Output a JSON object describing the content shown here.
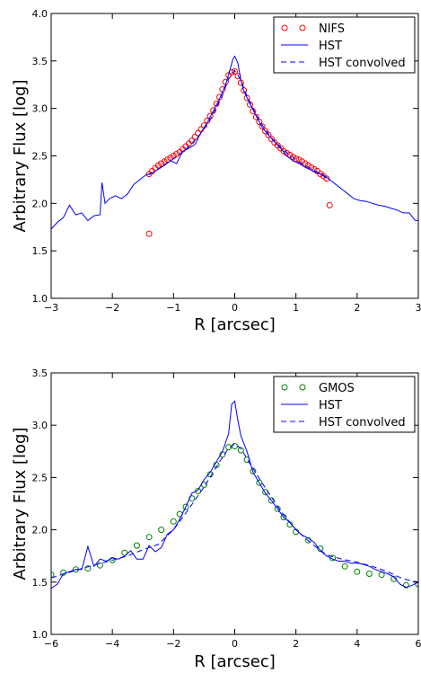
{
  "chart_data": [
    {
      "type": "line",
      "xlabel": "R [arcsec]",
      "ylabel": "Arbitrary Flux [log]",
      "xlim": [
        -3,
        3
      ],
      "ylim": [
        1.0,
        4.0
      ],
      "xticks": [
        -3,
        -2,
        -1,
        0,
        1,
        2,
        3
      ],
      "xtick_labels": [
        "−3",
        "−2",
        "−1",
        "0",
        "1",
        "2",
        "3"
      ],
      "yticks": [
        1.0,
        1.5,
        2.0,
        2.5,
        3.0,
        3.5,
        4.0
      ],
      "ytick_labels": [
        "1.0",
        "1.5",
        "2.0",
        "2.5",
        "3.0",
        "3.5",
        "4.0"
      ],
      "grid": false,
      "legend_position": "top-right",
      "series": [
        {
          "name": "NIFS",
          "style": "circles",
          "color": "#ff0000",
          "x": [
            -1.4,
            -1.35,
            -1.3,
            -1.25,
            -1.2,
            -1.15,
            -1.1,
            -1.05,
            -1.0,
            -0.95,
            -0.9,
            -0.85,
            -0.8,
            -0.75,
            -0.7,
            -0.65,
            -0.6,
            -0.55,
            -0.5,
            -0.45,
            -0.4,
            -0.35,
            -0.3,
            -0.25,
            -0.2,
            -0.15,
            -0.1,
            -0.05,
            0.0,
            0.05,
            0.1,
            0.15,
            0.2,
            0.25,
            0.3,
            0.35,
            0.4,
            0.45,
            0.5,
            0.55,
            0.6,
            0.65,
            0.7,
            0.75,
            0.8,
            0.85,
            0.9,
            0.95,
            1.0,
            1.05,
            1.1,
            1.15,
            1.2,
            1.25,
            1.3,
            1.35,
            1.4,
            1.45,
            1.5,
            -1.4,
            1.55
          ],
          "y": [
            2.31,
            2.34,
            2.37,
            2.4,
            2.42,
            2.44,
            2.46,
            2.48,
            2.5,
            2.52,
            2.54,
            2.57,
            2.6,
            2.63,
            2.66,
            2.7,
            2.74,
            2.78,
            2.82,
            2.87,
            2.92,
            2.98,
            3.05,
            3.12,
            3.2,
            3.28,
            3.35,
            3.38,
            3.39,
            3.34,
            3.27,
            3.19,
            3.11,
            3.04,
            2.97,
            2.91,
            2.86,
            2.81,
            2.76,
            2.72,
            2.68,
            2.64,
            2.61,
            2.58,
            2.55,
            2.53,
            2.51,
            2.49,
            2.47,
            2.46,
            2.44,
            2.42,
            2.4,
            2.38,
            2.36,
            2.34,
            2.31,
            2.29,
            2.26,
            1.68,
            1.98
          ]
        },
        {
          "name": "HST",
          "style": "solid",
          "color": "#0000ff",
          "x": [
            -3.0,
            -2.9,
            -2.8,
            -2.7,
            -2.6,
            -2.5,
            -2.4,
            -2.3,
            -2.2,
            -2.17,
            -2.12,
            -2.05,
            -1.95,
            -1.85,
            -1.75,
            -1.65,
            -1.55,
            -1.45,
            -1.35,
            -1.25,
            -1.15,
            -1.05,
            -0.95,
            -0.85,
            -0.75,
            -0.65,
            -0.55,
            -0.45,
            -0.35,
            -0.25,
            -0.15,
            -0.08,
            -0.03,
            0.0,
            0.05,
            0.1,
            0.15,
            0.25,
            0.35,
            0.45,
            0.55,
            0.65,
            0.75,
            0.85,
            0.95,
            1.05,
            1.15,
            1.25,
            1.35,
            1.45,
            1.55,
            1.65,
            1.75,
            1.85,
            1.95,
            2.05,
            2.15,
            2.25,
            2.35,
            2.45,
            2.55,
            2.65,
            2.75,
            2.85,
            2.95,
            3.0
          ],
          "y": [
            1.73,
            1.8,
            1.85,
            1.98,
            1.88,
            1.9,
            1.82,
            1.87,
            1.88,
            2.22,
            2.0,
            2.05,
            2.08,
            2.05,
            2.1,
            2.2,
            2.25,
            2.3,
            2.32,
            2.36,
            2.4,
            2.45,
            2.42,
            2.55,
            2.58,
            2.62,
            2.75,
            2.85,
            2.97,
            3.1,
            3.25,
            3.4,
            3.52,
            3.55,
            3.48,
            3.3,
            3.18,
            3.05,
            2.92,
            2.8,
            2.72,
            2.65,
            2.58,
            2.5,
            2.45,
            2.42,
            2.38,
            2.35,
            2.32,
            2.3,
            2.25,
            2.2,
            2.15,
            2.1,
            2.05,
            2.03,
            2.02,
            2.0,
            1.98,
            1.97,
            1.95,
            1.93,
            1.9,
            1.9,
            1.82,
            1.82
          ]
        },
        {
          "name": "HST convolved",
          "style": "dashed",
          "color": "#0000ff",
          "x": [
            -1.4,
            -1.2,
            -1.0,
            -0.8,
            -0.6,
            -0.4,
            -0.2,
            -0.1,
            0.0,
            0.1,
            0.2,
            0.4,
            0.6,
            0.8,
            1.0,
            1.2,
            1.4,
            1.5
          ],
          "y": [
            2.3,
            2.38,
            2.47,
            2.57,
            2.7,
            2.88,
            3.14,
            3.31,
            3.4,
            3.3,
            3.13,
            2.87,
            2.69,
            2.56,
            2.46,
            2.38,
            2.31,
            2.27
          ]
        }
      ]
    },
    {
      "type": "line",
      "xlabel": "R [arcsec]",
      "ylabel": "Arbitrary Flux [log]",
      "xlim": [
        -6,
        6
      ],
      "ylim": [
        1.0,
        3.5
      ],
      "xticks": [
        -6,
        -4,
        -2,
        0,
        2,
        4,
        6
      ],
      "xtick_labels": [
        "−6",
        "−4",
        "−2",
        "0",
        "2",
        "4",
        "6"
      ],
      "yticks": [
        1.0,
        1.5,
        2.0,
        2.5,
        3.0,
        3.5
      ],
      "ytick_labels": [
        "1.0",
        "1.5",
        "2.0",
        "2.5",
        "3.0",
        "3.5"
      ],
      "grid": false,
      "legend_position": "top-right",
      "series": [
        {
          "name": "GMOS",
          "style": "circles",
          "color": "#008000",
          "x": [
            -6.0,
            -5.6,
            -5.2,
            -4.8,
            -4.4,
            -4.0,
            -3.6,
            -3.2,
            -2.8,
            -2.4,
            -2.0,
            -1.8,
            -1.6,
            -1.4,
            -1.2,
            -1.0,
            -0.8,
            -0.6,
            -0.4,
            -0.2,
            0.0,
            0.2,
            0.4,
            0.6,
            0.8,
            1.0,
            1.2,
            1.4,
            1.6,
            1.8,
            2.0,
            2.4,
            2.8,
            3.2,
            3.6,
            4.0,
            4.4,
            4.8,
            5.2,
            5.6,
            6.0
          ],
          "y": [
            1.57,
            1.59,
            1.62,
            1.63,
            1.66,
            1.71,
            1.78,
            1.85,
            1.93,
            2.0,
            2.08,
            2.15,
            2.22,
            2.3,
            2.37,
            2.43,
            2.53,
            2.62,
            2.72,
            2.79,
            2.8,
            2.76,
            2.67,
            2.56,
            2.45,
            2.36,
            2.28,
            2.2,
            2.12,
            2.05,
            1.98,
            1.9,
            1.82,
            1.73,
            1.65,
            1.6,
            1.58,
            1.57,
            1.53,
            1.47,
            1.48
          ]
        },
        {
          "name": "HST",
          "style": "solid",
          "color": "#0000ff",
          "x": [
            -6.0,
            -5.8,
            -5.6,
            -5.4,
            -5.2,
            -5.0,
            -4.8,
            -4.6,
            -4.4,
            -4.2,
            -4.0,
            -3.8,
            -3.6,
            -3.4,
            -3.2,
            -3.0,
            -2.8,
            -2.6,
            -2.4,
            -2.2,
            -2.0,
            -1.8,
            -1.6,
            -1.4,
            -1.2,
            -1.0,
            -0.8,
            -0.6,
            -0.4,
            -0.2,
            -0.1,
            0.0,
            0.1,
            0.2,
            0.4,
            0.6,
            0.8,
            1.0,
            1.2,
            1.4,
            1.6,
            1.8,
            2.0,
            2.2,
            2.4,
            2.6,
            2.8,
            3.0,
            3.2,
            3.4,
            3.6,
            3.8,
            4.0,
            4.2,
            4.4,
            4.6,
            4.8,
            5.0,
            5.2,
            5.4,
            5.6,
            5.8,
            6.0
          ],
          "y": [
            1.44,
            1.48,
            1.58,
            1.6,
            1.62,
            1.62,
            1.84,
            1.65,
            1.72,
            1.7,
            1.73,
            1.72,
            1.75,
            1.8,
            1.72,
            1.72,
            1.85,
            1.79,
            1.83,
            1.96,
            2.0,
            2.1,
            2.22,
            2.35,
            2.38,
            2.48,
            2.55,
            2.65,
            2.75,
            2.92,
            3.2,
            3.23,
            3.05,
            2.9,
            2.75,
            2.55,
            2.45,
            2.35,
            2.28,
            2.2,
            2.12,
            2.07,
            2.0,
            1.95,
            1.92,
            1.88,
            1.8,
            1.75,
            1.72,
            1.7,
            1.7,
            1.68,
            1.68,
            1.67,
            1.65,
            1.62,
            1.6,
            1.58,
            1.55,
            1.48,
            1.45,
            1.47,
            1.5
          ]
        },
        {
          "name": "HST convolved",
          "style": "dashed",
          "color": "#0000ff",
          "x": [
            -6.0,
            -5.0,
            -4.0,
            -3.5,
            -3.0,
            -2.5,
            -2.0,
            -1.5,
            -1.0,
            -0.5,
            -0.2,
            0.0,
            0.2,
            0.5,
            1.0,
            1.5,
            2.0,
            2.5,
            3.0,
            3.5,
            4.0,
            4.5,
            5.0,
            5.5,
            6.0
          ],
          "y": [
            1.54,
            1.63,
            1.71,
            1.75,
            1.81,
            1.86,
            2.0,
            2.2,
            2.41,
            2.65,
            2.78,
            2.82,
            2.78,
            2.63,
            2.4,
            2.18,
            2.0,
            1.87,
            1.76,
            1.72,
            1.69,
            1.65,
            1.6,
            1.53,
            1.5
          ]
        }
      ]
    }
  ]
}
